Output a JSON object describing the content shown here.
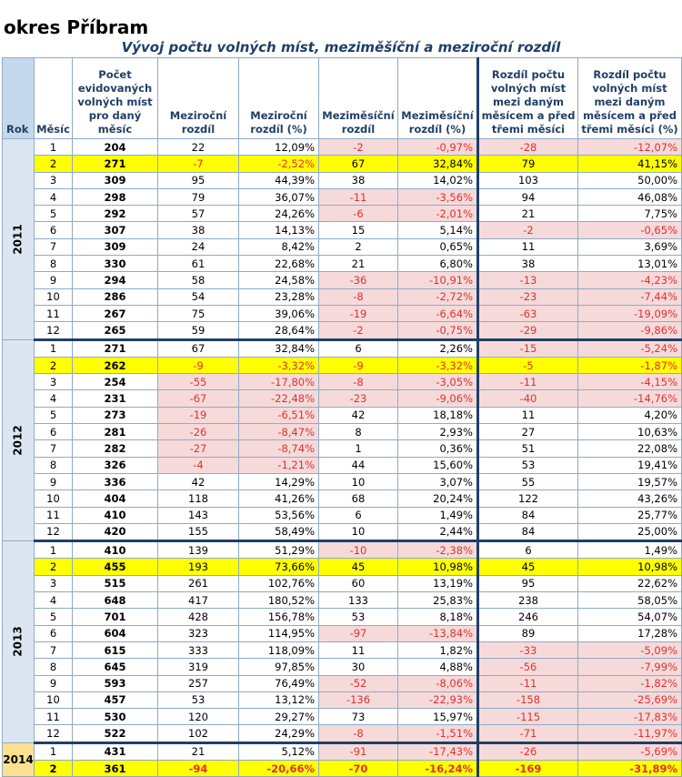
{
  "title": "okres Příbram",
  "subtitle": "Vývoj počtu volných míst, meziměšíční a meziroční rozdíl",
  "headers": {
    "rok": "Rok",
    "mesic": "Měsíc",
    "pocet": "Počet evidovaných volných míst pro daný měsíc",
    "mezirocni": "Meziroční rozdíl",
    "mezirocni_pct": "Meziroční rozdíl (%)",
    "mezimesicni": "Meziměsíční rozdíl",
    "mezimesicni_pct": "Meziměsíční rozdíl (%)",
    "rozdil3": "Rozdíl počtu volných míst mezi daným měsícem a před třemi měsíci",
    "rozdil3_pct": "Rozdíl počtu volných míst mezi daným měsícem a před třemi měsíci (%)"
  },
  "years": [
    {
      "year": "2011",
      "rows": [
        [
          "1",
          "204",
          "22",
          "12,09%",
          "-2",
          "-0,97%",
          "-28",
          "-12,07%"
        ],
        [
          "2",
          "271",
          "-7",
          "-2,52%",
          "67",
          "32,84%",
          "79",
          "41,15%"
        ],
        [
          "3",
          "309",
          "95",
          "44,39%",
          "38",
          "14,02%",
          "103",
          "50,00%"
        ],
        [
          "4",
          "298",
          "79",
          "36,07%",
          "-11",
          "-3,56%",
          "94",
          "46,08%"
        ],
        [
          "5",
          "292",
          "57",
          "24,26%",
          "-6",
          "-2,01%",
          "21",
          "7,75%"
        ],
        [
          "6",
          "307",
          "38",
          "14,13%",
          "15",
          "5,14%",
          "-2",
          "-0,65%"
        ],
        [
          "7",
          "309",
          "24",
          "8,42%",
          "2",
          "0,65%",
          "11",
          "3,69%"
        ],
        [
          "8",
          "330",
          "61",
          "22,68%",
          "21",
          "6,80%",
          "38",
          "13,01%"
        ],
        [
          "9",
          "294",
          "58",
          "24,58%",
          "-36",
          "-10,91%",
          "-13",
          "-4,23%"
        ],
        [
          "10",
          "286",
          "54",
          "23,28%",
          "-8",
          "-2,72%",
          "-23",
          "-7,44%"
        ],
        [
          "11",
          "267",
          "75",
          "39,06%",
          "-19",
          "-6,64%",
          "-63",
          "-19,09%"
        ],
        [
          "12",
          "265",
          "59",
          "28,64%",
          "-2",
          "-0,75%",
          "-29",
          "-9,86%"
        ]
      ]
    },
    {
      "year": "2012",
      "rows": [
        [
          "1",
          "271",
          "67",
          "32,84%",
          "6",
          "2,26%",
          "-15",
          "-5,24%"
        ],
        [
          "2",
          "262",
          "-9",
          "-3,32%",
          "-9",
          "-3,32%",
          "-5",
          "-1,87%"
        ],
        [
          "3",
          "254",
          "-55",
          "-17,80%",
          "-8",
          "-3,05%",
          "-11",
          "-4,15%"
        ],
        [
          "4",
          "231",
          "-67",
          "-22,48%",
          "-23",
          "-9,06%",
          "-40",
          "-14,76%"
        ],
        [
          "5",
          "273",
          "-19",
          "-6,51%",
          "42",
          "18,18%",
          "11",
          "4,20%"
        ],
        [
          "6",
          "281",
          "-26",
          "-8,47%",
          "8",
          "2,93%",
          "27",
          "10,63%"
        ],
        [
          "7",
          "282",
          "-27",
          "-8,74%",
          "1",
          "0,36%",
          "51",
          "22,08%"
        ],
        [
          "8",
          "326",
          "-4",
          "-1,21%",
          "44",
          "15,60%",
          "53",
          "19,41%"
        ],
        [
          "9",
          "336",
          "42",
          "14,29%",
          "10",
          "3,07%",
          "55",
          "19,57%"
        ],
        [
          "10",
          "404",
          "118",
          "41,26%",
          "68",
          "20,24%",
          "122",
          "43,26%"
        ],
        [
          "11",
          "410",
          "143",
          "53,56%",
          "6",
          "1,49%",
          "84",
          "25,77%"
        ],
        [
          "12",
          "420",
          "155",
          "58,49%",
          "10",
          "2,44%",
          "84",
          "25,00%"
        ]
      ]
    },
    {
      "year": "2013",
      "rows": [
        [
          "1",
          "410",
          "139",
          "51,29%",
          "-10",
          "-2,38%",
          "6",
          "1,49%"
        ],
        [
          "2",
          "455",
          "193",
          "73,66%",
          "45",
          "10,98%",
          "45",
          "10,98%"
        ],
        [
          "3",
          "515",
          "261",
          "102,76%",
          "60",
          "13,19%",
          "95",
          "22,62%"
        ],
        [
          "4",
          "648",
          "417",
          "180,52%",
          "133",
          "25,83%",
          "238",
          "58,05%"
        ],
        [
          "5",
          "701",
          "428",
          "156,78%",
          "53",
          "8,18%",
          "246",
          "54,07%"
        ],
        [
          "6",
          "604",
          "323",
          "114,95%",
          "-97",
          "-13,84%",
          "89",
          "17,28%"
        ],
        [
          "7",
          "615",
          "333",
          "118,09%",
          "11",
          "1,82%",
          "-33",
          "-5,09%"
        ],
        [
          "8",
          "645",
          "319",
          "97,85%",
          "30",
          "4,88%",
          "-56",
          "-7,99%"
        ],
        [
          "9",
          "593",
          "257",
          "76,49%",
          "-52",
          "-8,06%",
          "-11",
          "-1,82%"
        ],
        [
          "10",
          "457",
          "53",
          "13,12%",
          "-136",
          "-22,93%",
          "-158",
          "-25,69%"
        ],
        [
          "11",
          "530",
          "120",
          "29,27%",
          "73",
          "15,97%",
          "-115",
          "-17,83%"
        ],
        [
          "12",
          "522",
          "102",
          "24,29%",
          "-8",
          "-1,51%",
          "-71",
          "-11,97%"
        ]
      ]
    },
    {
      "year": "2014",
      "rows": [
        [
          "1",
          "431",
          "21",
          "5,12%",
          "-91",
          "-17,43%",
          "-26",
          "-5,69%"
        ],
        [
          "2",
          "361",
          "-94",
          "-20,66%",
          "-70",
          "-16,24%",
          "-169",
          "-31,89%"
        ]
      ]
    }
  ]
}
